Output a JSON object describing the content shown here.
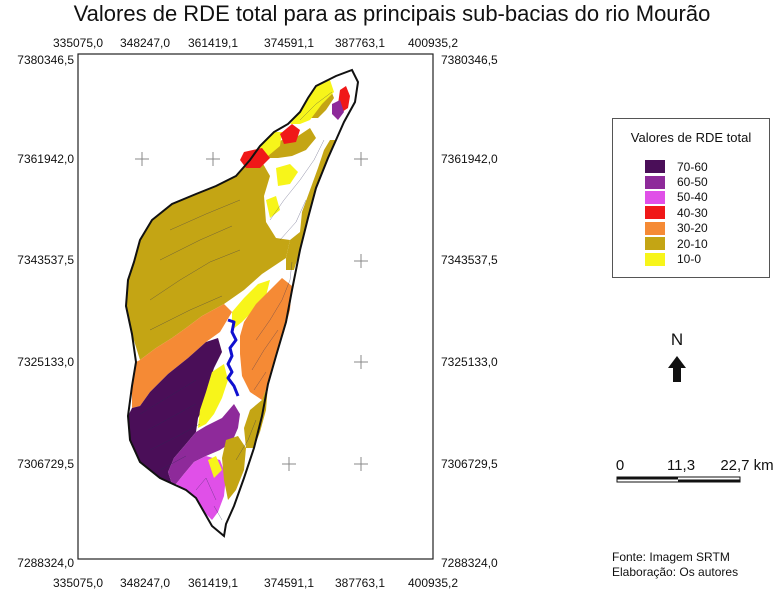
{
  "title": "Valores de RDE total para as principais sub-bacias do rio Mourão",
  "x_ticks": [
    "335075,0",
    "348247,0",
    "361419,1",
    "374591,1",
    "387763,1",
    "400935,2"
  ],
  "y_ticks": [
    "7380346,5",
    "7361942,0",
    "7343537,5",
    "7325133,0",
    "7306729,5",
    "7288324,0"
  ],
  "legend": {
    "title": "Valores de RDE total",
    "items": [
      {
        "label": "70-60",
        "color": "#4a0e58"
      },
      {
        "label": "60-50",
        "color": "#8e2a9a"
      },
      {
        "label": "50-40",
        "color": "#e050e8"
      },
      {
        "label": "40-30",
        "color": "#f01818"
      },
      {
        "label": "30-20",
        "color": "#f58a35"
      },
      {
        "label": "20-10",
        "color": "#c4a514"
      },
      {
        "label": "10-0",
        "color": "#f7f51a"
      }
    ]
  },
  "north_label": "N",
  "scale": {
    "labels": [
      "0",
      "11,3",
      "22,7 km"
    ]
  },
  "source": {
    "line1": "Fonte: Imagem SRTM",
    "line2": "Elaboração: Os autores"
  },
  "river_color": "#1010d0"
}
